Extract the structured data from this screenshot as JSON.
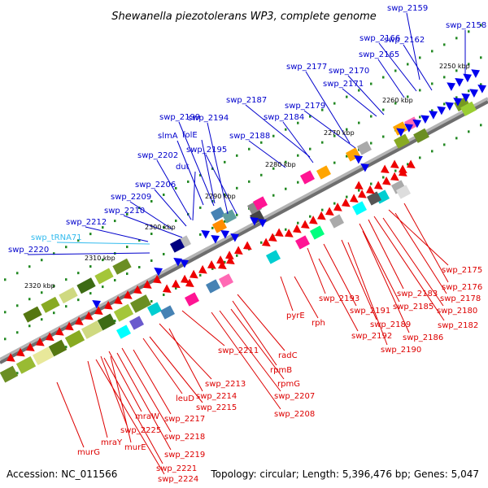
{
  "title": "Shewanella piezotolerans WP3, complete genome",
  "footer": {
    "accession": "Accession: NC_011566",
    "summary": "Topology: circular; Length: 5,396,476 bp; Genes: 5,047"
  },
  "colors": {
    "forward_label": "#0000cc",
    "reverse_label": "#dd0000",
    "trna_label": "#33bbee",
    "forward_arrow": "#0000ee",
    "reverse_arrow": "#ee0000",
    "backbone": "#888888",
    "gc_skew": "#228822",
    "gc_content": "#779922"
  },
  "ruler_labels": [
    "2250 kbp",
    "2260 kbp",
    "2270 kbp",
    "2280 kbp",
    "2290 kbp",
    "2300 kbp",
    "2310 kbp",
    "2320 kbp"
  ],
  "forward_labels": [
    "swp_2159",
    "swp_2158",
    "swp_2166",
    "swp_2162",
    "swp_2165",
    "swp_2177",
    "swp_2170",
    "swp_2171",
    "swp_2187",
    "swp_2179",
    "swp_2184",
    "swp_2188",
    "swp_2199",
    "swp_2194",
    "slmA",
    "folE",
    "swp_2195",
    "swp_2202",
    "dut",
    "swp_2206",
    "swp_2209",
    "swp_2210",
    "swp_2212",
    "swp_2220"
  ],
  "trna_labels": [
    "swp_tRNA71"
  ],
  "reverse_labels": [
    "swp_2175",
    "swp_2176",
    "swp_2178",
    "swp_2183",
    "swp_2180",
    "swp_2185",
    "swp_2182",
    "swp_2193",
    "swp_2191",
    "swp_2189",
    "swp_2186",
    "pyrE",
    "rph",
    "swp_2192",
    "swp_2190",
    "swp_2211",
    "radC",
    "rpmB",
    "rpmG",
    "swp_2213",
    "leuD",
    "swp_2214",
    "swp_2207",
    "swp_2215",
    "swp_2208",
    "mraW",
    "swp_2217",
    "swp_2225",
    "swp_2218",
    "mraY",
    "murE",
    "murG",
    "swp_2219",
    "swp_2221",
    "swp_2224"
  ]
}
